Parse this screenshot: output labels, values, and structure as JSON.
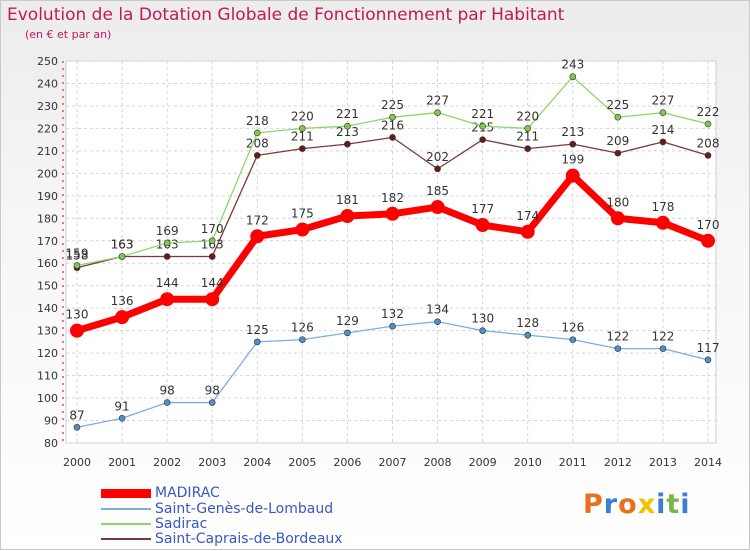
{
  "chart_data": {
    "type": "line",
    "title": "Evolution de la Dotation Globale de Fonctionnement par Habitant",
    "subtitle": "(en € et par an)",
    "x": [
      "2000",
      "2001",
      "2002",
      "2003",
      "2004",
      "2005",
      "2006",
      "2007",
      "2008",
      "2009",
      "2010",
      "2011",
      "2012",
      "2013",
      "2014"
    ],
    "ylim": [
      80,
      250
    ],
    "yticks": [
      80,
      90,
      100,
      110,
      120,
      130,
      140,
      150,
      160,
      170,
      180,
      190,
      200,
      210,
      220,
      230,
      240,
      250
    ],
    "grid": true,
    "legend_position": "bottom-left",
    "series": [
      {
        "name": "MADIRAC",
        "color": "#ff0000",
        "line_color": "#ff0000",
        "values": [
          130,
          136,
          144,
          144,
          172,
          175,
          181,
          182,
          185,
          177,
          174,
          199,
          180,
          178,
          170
        ]
      },
      {
        "name": "Saint-Genès-de-Lombaud",
        "color": "#4f8fcc",
        "line_color": "#7aaee0",
        "values": [
          87,
          91,
          98,
          98,
          125,
          126,
          129,
          132,
          134,
          130,
          128,
          126,
          122,
          122,
          117
        ]
      },
      {
        "name": "Sadirac",
        "color": "#7ecb4a",
        "line_color": "#8fd66a",
        "values": [
          159,
          163,
          169,
          170,
          218,
          220,
          221,
          225,
          227,
          221,
          220,
          243,
          225,
          227,
          222
        ]
      },
      {
        "name": "Saint-Caprais-de-Bordeaux",
        "color": "#6b1a1a",
        "line_color": "#7a3a3a",
        "values": [
          158,
          163,
          163,
          163,
          208,
          211,
          213,
          216,
          202,
          215,
          211,
          213,
          209,
          214,
          208
        ]
      }
    ]
  },
  "logo": {
    "text": "Proxiti",
    "colors": [
      "#e8701a",
      "#3b7fd1",
      "#e8701a",
      "#f2c200",
      "#3b7fd1",
      "#7ab648",
      "#3b7fd1"
    ]
  }
}
